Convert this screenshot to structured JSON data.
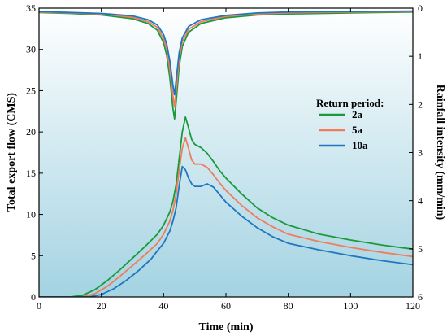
{
  "chart_data": {
    "type": "line",
    "title": "",
    "xlabel": "Time (min)",
    "ylabel": "Total export flow (CMS)",
    "y2label": "Rainfall intensity (mm/min)",
    "xlim": [
      0,
      120
    ],
    "ylim": [
      0,
      35
    ],
    "y2lim": [
      0,
      6
    ],
    "y2_inverted": true,
    "x_ticks": [
      0,
      20,
      40,
      60,
      80,
      100,
      120
    ],
    "y_ticks": [
      0,
      5,
      10,
      15,
      20,
      25,
      30,
      35
    ],
    "y2_ticks": [
      0,
      1,
      2,
      3,
      4,
      5,
      6
    ],
    "background_gradient": [
      "#ffffff",
      "#a4d3e2"
    ],
    "legend": {
      "title": "Return period:",
      "position": "right-middle"
    },
    "flow_series": [
      {
        "name": "2a",
        "color": "#1a9a3a",
        "x": [
          0,
          10,
          14,
          18,
          22,
          26,
          30,
          34,
          38,
          40,
          42,
          43,
          44,
          45,
          46,
          47,
          48,
          49,
          50,
          52,
          54,
          56,
          58,
          60,
          65,
          70,
          75,
          80,
          90,
          100,
          110,
          120
        ],
        "y": [
          0,
          0,
          0.2,
          0.9,
          2.0,
          3.3,
          4.7,
          6.1,
          7.6,
          8.7,
          10.3,
          11.6,
          13.6,
          16.8,
          20.0,
          21.8,
          20.5,
          19.1,
          18.5,
          18.1,
          17.4,
          16.4,
          15.3,
          14.4,
          12.5,
          10.8,
          9.6,
          8.7,
          7.6,
          6.9,
          6.3,
          5.8
        ]
      },
      {
        "name": "5a",
        "color": "#f07c5c",
        "x": [
          0,
          14,
          18,
          22,
          26,
          30,
          34,
          38,
          40,
          42,
          43,
          44,
          45,
          46,
          47,
          48,
          49,
          50,
          52,
          54,
          56,
          58,
          60,
          65,
          70,
          75,
          80,
          90,
          100,
          110,
          120
        ],
        "y": [
          0,
          0,
          0.4,
          1.3,
          2.5,
          3.8,
          5.1,
          6.5,
          7.6,
          9.2,
          10.5,
          12.4,
          15.4,
          18.0,
          19.3,
          18.0,
          16.6,
          16.1,
          16.1,
          15.7,
          14.8,
          13.8,
          12.9,
          11.1,
          9.6,
          8.5,
          7.6,
          6.7,
          6.0,
          5.4,
          4.9
        ]
      },
      {
        "name": "10a",
        "color": "#1f77c0",
        "x": [
          0,
          16,
          20,
          24,
          28,
          32,
          36,
          38,
          40,
          42,
          43,
          44,
          45,
          46,
          47,
          48,
          49,
          50,
          52,
          54,
          56,
          58,
          60,
          65,
          70,
          75,
          80,
          90,
          100,
          110,
          120
        ],
        "y": [
          0,
          0,
          0.3,
          1.0,
          2.0,
          3.2,
          4.6,
          5.6,
          6.5,
          8.0,
          9.2,
          10.8,
          13.5,
          15.8,
          15.4,
          14.4,
          13.7,
          13.4,
          13.4,
          13.7,
          13.3,
          12.4,
          11.5,
          9.8,
          8.4,
          7.3,
          6.5,
          5.7,
          5.0,
          4.4,
          3.9
        ]
      }
    ],
    "rain_series": [
      {
        "name": "2a",
        "color": "#1a9a3a",
        "x": [
          0,
          10,
          20,
          30,
          35,
          38,
          40,
          41,
          42,
          43,
          43.5,
          44,
          45,
          46,
          48,
          52,
          60,
          70,
          80,
          100,
          120
        ],
        "y": [
          0.09,
          0.11,
          0.14,
          0.22,
          0.32,
          0.46,
          0.72,
          0.98,
          1.45,
          2.08,
          2.3,
          1.95,
          1.2,
          0.8,
          0.5,
          0.32,
          0.2,
          0.14,
          0.12,
          0.1,
          0.08
        ]
      },
      {
        "name": "5a",
        "color": "#f07c5c",
        "x": [
          0,
          10,
          20,
          30,
          35,
          38,
          40,
          41,
          42,
          43,
          43.5,
          44,
          45,
          46,
          48,
          52,
          60,
          70,
          80,
          100,
          120
        ],
        "y": [
          0.08,
          0.1,
          0.12,
          0.19,
          0.28,
          0.4,
          0.63,
          0.86,
          1.27,
          1.82,
          2.05,
          1.72,
          1.05,
          0.7,
          0.44,
          0.28,
          0.17,
          0.12,
          0.1,
          0.08,
          0.07
        ]
      },
      {
        "name": "10a",
        "color": "#1f77c0",
        "x": [
          0,
          10,
          20,
          30,
          35,
          38,
          40,
          41,
          42,
          43,
          43.5,
          44,
          45,
          46,
          48,
          52,
          60,
          70,
          80,
          100,
          120
        ],
        "y": [
          0.07,
          0.09,
          0.11,
          0.16,
          0.24,
          0.35,
          0.55,
          0.75,
          1.1,
          1.6,
          1.8,
          1.5,
          0.92,
          0.62,
          0.38,
          0.24,
          0.15,
          0.1,
          0.08,
          0.07,
          0.06
        ]
      }
    ]
  }
}
